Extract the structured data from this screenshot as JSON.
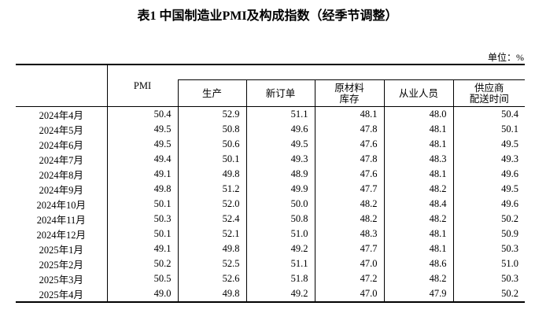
{
  "title": "表1 中国制造业PMI及构成指数（经季节调整）",
  "unit": "单位：%",
  "columns": [
    "PMI",
    "生产",
    "新订单",
    "原材料\n库存",
    "从业人员",
    "供应商\n配送时间"
  ],
  "rows": [
    [
      "2024年4月",
      "50.4",
      "52.9",
      "51.1",
      "48.1",
      "48.0",
      "50.4"
    ],
    [
      "2024年5月",
      "49.5",
      "50.8",
      "49.6",
      "47.8",
      "48.1",
      "50.1"
    ],
    [
      "2024年6月",
      "49.5",
      "50.6",
      "49.5",
      "47.6",
      "48.1",
      "49.5"
    ],
    [
      "2024年7月",
      "49.4",
      "50.1",
      "49.3",
      "47.8",
      "48.3",
      "49.3"
    ],
    [
      "2024年8月",
      "49.1",
      "49.8",
      "48.9",
      "47.6",
      "48.1",
      "49.6"
    ],
    [
      "2024年9月",
      "49.8",
      "51.2",
      "49.9",
      "47.7",
      "48.2",
      "49.5"
    ],
    [
      "2024年10月",
      "50.1",
      "52.0",
      "50.0",
      "48.2",
      "48.4",
      "49.6"
    ],
    [
      "2024年11月",
      "50.3",
      "52.4",
      "50.8",
      "48.2",
      "48.2",
      "50.2"
    ],
    [
      "2024年12月",
      "50.1",
      "52.1",
      "51.0",
      "48.3",
      "48.1",
      "50.9"
    ],
    [
      "2025年1月",
      "49.1",
      "49.8",
      "49.2",
      "47.7",
      "48.1",
      "50.3"
    ],
    [
      "2025年2月",
      "50.2",
      "52.5",
      "51.1",
      "47.0",
      "48.6",
      "51.0"
    ],
    [
      "2025年3月",
      "50.5",
      "52.6",
      "51.8",
      "47.2",
      "48.2",
      "50.3"
    ],
    [
      "2025年4月",
      "49.0",
      "49.8",
      "49.2",
      "47.0",
      "47.9",
      "50.2"
    ]
  ]
}
